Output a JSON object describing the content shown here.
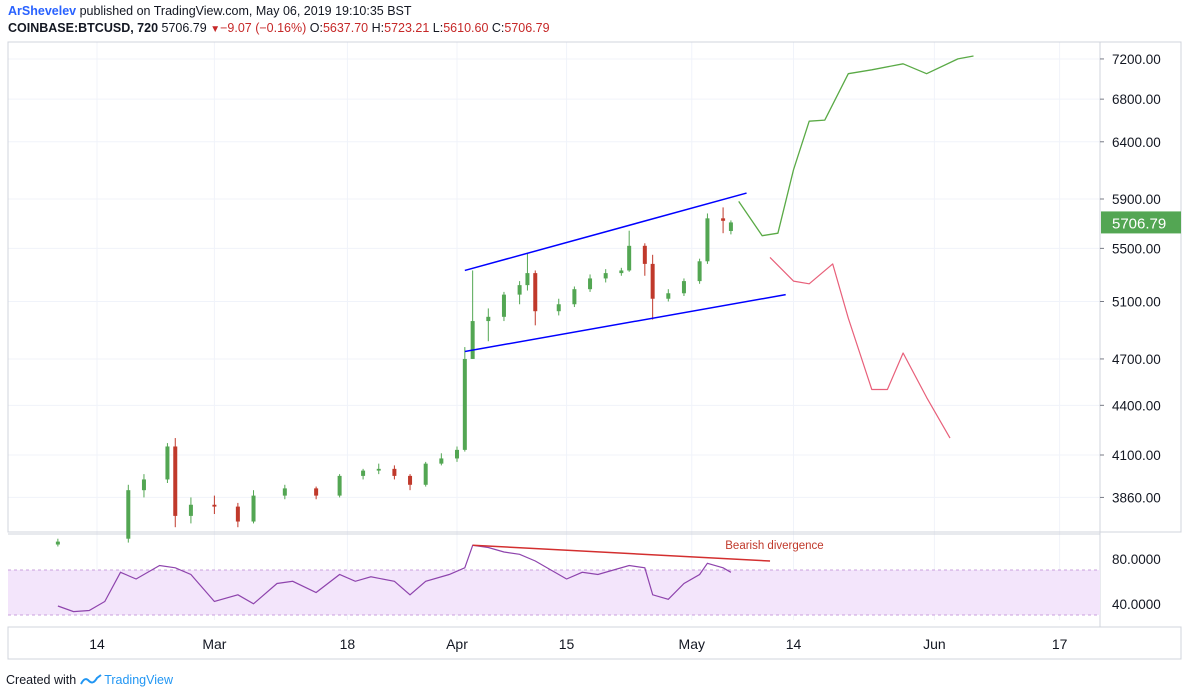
{
  "header": {
    "author": "ArShevelev",
    "published": "published on TradingView.com, May 06, 2019 19:10:35 BST",
    "symbol": "COINBASE:BTCUSD, 720",
    "last": "5706.79",
    "change": "−9.07 (−0.16%)",
    "o_label": "O:",
    "o_value": "5637.70",
    "h_label": "H:",
    "h_value": "5723.21",
    "l_label": "L:",
    "l_value": "5610.60",
    "c_label": "C:",
    "c_value": "5706.79"
  },
  "footer": {
    "created_with": "Created with",
    "brand": "TradingView"
  },
  "colors": {
    "up": "#53a653",
    "down": "#c0392b",
    "channel": "#0000ff",
    "bull": "#5aaa46",
    "bear": "#e8607a",
    "rsi": "#8e44ad",
    "rsi_band": "#f3e5fb",
    "divergence": "#d32f2f"
  },
  "chart_data": [
    {
      "type": "candlestick",
      "title": "",
      "price_scale": {
        "ticks": [
          3860,
          4100,
          4400,
          4700,
          5100,
          5500,
          5900,
          6400,
          6800,
          7200
        ],
        "tick_labels": [
          "3860.00",
          "4100.00",
          "4400.00",
          "4700.00",
          "5100.00",
          "5500.00",
          "5900.00",
          "6400.00",
          "6800.00",
          "7200.00"
        ],
        "scale": "log"
      },
      "last_price_label": "5706.79",
      "time_axis": {
        "ticks": [
          "14",
          "Mar",
          "18",
          "Apr",
          "15",
          "May",
          "14",
          "Jun",
          "17"
        ],
        "tick_dates": [
          "2019-02-14",
          "2019-03-01",
          "2019-03-18",
          "2019-04-01",
          "2019-04-15",
          "2019-05-01",
          "2019-05-14",
          "2019-06-01",
          "2019-06-17"
        ]
      },
      "ohlc_12h": [
        {
          "date": "2019-02-09",
          "segment": "pre-rally",
          "values": [
            3610,
            3640,
            3600,
            3625
          ]
        },
        {
          "date": "2019-02-18",
          "values": [
            3640,
            3930,
            3620,
            3900
          ]
        },
        {
          "date": "2019-02-20",
          "values": [
            3900,
            3990,
            3860,
            3960
          ]
        },
        {
          "date": "2019-02-23",
          "values": [
            3960,
            4170,
            3940,
            4150
          ]
        },
        {
          "date": "2019-02-24",
          "values": [
            4150,
            4200,
            3700,
            3760
          ]
        },
        {
          "date": "2019-02-26",
          "values": [
            3760,
            3860,
            3720,
            3820
          ]
        },
        {
          "date": "2019-03-01",
          "values": [
            3820,
            3870,
            3770,
            3810
          ]
        },
        {
          "date": "2019-03-04",
          "values": [
            3810,
            3830,
            3700,
            3730
          ]
        },
        {
          "date": "2019-03-06",
          "values": [
            3730,
            3900,
            3720,
            3870
          ]
        },
        {
          "date": "2019-03-10",
          "values": [
            3870,
            3930,
            3850,
            3910
          ]
        },
        {
          "date": "2019-03-14",
          "values": [
            3910,
            3920,
            3850,
            3870
          ]
        },
        {
          "date": "2019-03-17",
          "values": [
            3870,
            3990,
            3860,
            3980
          ]
        },
        {
          "date": "2019-03-20",
          "values": [
            3980,
            4020,
            3960,
            4010
          ]
        },
        {
          "date": "2019-03-22",
          "values": [
            4010,
            4050,
            3990,
            4020
          ]
        },
        {
          "date": "2019-03-24",
          "values": [
            4020,
            4040,
            3960,
            3980
          ]
        },
        {
          "date": "2019-03-26",
          "values": [
            3980,
            3990,
            3900,
            3930
          ]
        },
        {
          "date": "2019-03-28",
          "values": [
            3930,
            4060,
            3920,
            4050
          ]
        },
        {
          "date": "2019-03-30",
          "values": [
            4050,
            4110,
            4040,
            4080
          ]
        },
        {
          "date": "2019-04-01",
          "values": [
            4080,
            4150,
            4060,
            4130
          ]
        },
        {
          "date": "2019-04-02",
          "values": [
            4130,
            4780,
            4120,
            4700
          ]
        },
        {
          "date": "2019-04-03",
          "values": [
            4700,
            5330,
            4700,
            4960
          ]
        },
        {
          "date": "2019-04-05",
          "values": [
            4960,
            5050,
            4820,
            4990
          ]
        },
        {
          "date": "2019-04-07",
          "values": [
            4990,
            5170,
            4960,
            5150
          ]
        },
        {
          "date": "2019-04-09",
          "values": [
            5150,
            5250,
            5080,
            5220
          ]
        },
        {
          "date": "2019-04-10",
          "values": [
            5220,
            5460,
            5180,
            5310
          ]
        },
        {
          "date": "2019-04-11",
          "values": [
            5310,
            5330,
            4930,
            5030
          ]
        },
        {
          "date": "2019-04-14",
          "values": [
            5030,
            5120,
            5000,
            5080
          ]
        },
        {
          "date": "2019-04-16",
          "values": [
            5080,
            5210,
            5060,
            5190
          ]
        },
        {
          "date": "2019-04-18",
          "values": [
            5190,
            5300,
            5170,
            5270
          ]
        },
        {
          "date": "2019-04-20",
          "values": [
            5270,
            5340,
            5240,
            5310
          ]
        },
        {
          "date": "2019-04-22",
          "values": [
            5310,
            5350,
            5290,
            5330
          ]
        },
        {
          "date": "2019-04-23",
          "values": [
            5330,
            5640,
            5320,
            5520
          ]
        },
        {
          "date": "2019-04-25",
          "values": [
            5520,
            5540,
            5290,
            5380
          ]
        },
        {
          "date": "2019-04-26",
          "values": [
            5380,
            5450,
            4970,
            5120
          ]
        },
        {
          "date": "2019-04-28",
          "values": [
            5120,
            5190,
            5100,
            5160
          ]
        },
        {
          "date": "2019-04-30",
          "values": [
            5160,
            5270,
            5140,
            5250
          ]
        },
        {
          "date": "2019-05-02",
          "values": [
            5250,
            5420,
            5230,
            5400
          ]
        },
        {
          "date": "2019-05-03",
          "values": [
            5400,
            5780,
            5380,
            5740
          ]
        },
        {
          "date": "2019-05-05",
          "values": [
            5740,
            5830,
            5620,
            5720
          ]
        },
        {
          "date": "2019-05-06",
          "values": [
            5637.7,
            5723.21,
            5610.6,
            5706.79
          ]
        }
      ],
      "ohlc_fields": [
        "open",
        "high",
        "low",
        "close"
      ],
      "channel": {
        "upper": [
          [
            "2019-04-02",
            5330
          ],
          [
            "2019-05-08",
            5950
          ]
        ],
        "lower": [
          [
            "2019-04-02",
            4750
          ],
          [
            "2019-05-13",
            5150
          ]
        ]
      },
      "bullish_projection": [
        [
          "2019-05-07",
          5880
        ],
        [
          "2019-05-10",
          5600
        ],
        [
          "2019-05-12",
          5620
        ],
        [
          "2019-05-14",
          6150
        ],
        [
          "2019-05-16",
          6590
        ],
        [
          "2019-05-18",
          6600
        ],
        [
          "2019-05-21",
          7050
        ],
        [
          "2019-05-24",
          7090
        ],
        [
          "2019-05-28",
          7150
        ],
        [
          "2019-05-31",
          7050
        ],
        [
          "2019-06-04",
          7200
        ],
        [
          "2019-06-06",
          7230
        ]
      ],
      "bearish_projection": [
        [
          "2019-05-11",
          5430
        ],
        [
          "2019-05-14",
          5250
        ],
        [
          "2019-05-16",
          5230
        ],
        [
          "2019-05-19",
          5380
        ],
        [
          "2019-05-21",
          4980
        ],
        [
          "2019-05-24",
          4500
        ],
        [
          "2019-05-26",
          4500
        ],
        [
          "2019-05-28",
          4740
        ],
        [
          "2019-05-31",
          4450
        ],
        [
          "2019-06-03",
          4200
        ]
      ]
    },
    {
      "type": "line",
      "indicator": "RSI",
      "y_ticks": [
        40,
        80
      ],
      "y_tick_labels": [
        "40.0000",
        "80.0000"
      ],
      "band": [
        30,
        70
      ],
      "values": [
        [
          "2019-02-09",
          38
        ],
        [
          "2019-02-11",
          33
        ],
        [
          "2019-02-13",
          34
        ],
        [
          "2019-02-15",
          42
        ],
        [
          "2019-02-17",
          68
        ],
        [
          "2019-02-19",
          62
        ],
        [
          "2019-02-22",
          74
        ],
        [
          "2019-02-24",
          72
        ],
        [
          "2019-02-26",
          66
        ],
        [
          "2019-03-01",
          42
        ],
        [
          "2019-03-04",
          48
        ],
        [
          "2019-03-06",
          40
        ],
        [
          "2019-03-09",
          58
        ],
        [
          "2019-03-11",
          60
        ],
        [
          "2019-03-14",
          50
        ],
        [
          "2019-03-17",
          66
        ],
        [
          "2019-03-19",
          60
        ],
        [
          "2019-03-21",
          64
        ],
        [
          "2019-03-24",
          60
        ],
        [
          "2019-03-26",
          48
        ],
        [
          "2019-03-28",
          60
        ],
        [
          "2019-03-31",
          66
        ],
        [
          "2019-04-02",
          72
        ],
        [
          "2019-04-03",
          92
        ],
        [
          "2019-04-05",
          90
        ],
        [
          "2019-04-07",
          86
        ],
        [
          "2019-04-09",
          84
        ],
        [
          "2019-04-11",
          78
        ],
        [
          "2019-04-13",
          70
        ],
        [
          "2019-04-15",
          62
        ],
        [
          "2019-04-17",
          68
        ],
        [
          "2019-04-19",
          66
        ],
        [
          "2019-04-21",
          70
        ],
        [
          "2019-04-23",
          74
        ],
        [
          "2019-04-25",
          72
        ],
        [
          "2019-04-26",
          48
        ],
        [
          "2019-04-28",
          44
        ],
        [
          "2019-04-30",
          58
        ],
        [
          "2019-05-02",
          66
        ],
        [
          "2019-05-03",
          76
        ],
        [
          "2019-05-05",
          72
        ],
        [
          "2019-05-06",
          68
        ]
      ],
      "annotation": {
        "text": "Bearish divergence",
        "line": [
          [
            "2019-04-03",
            92
          ],
          [
            "2019-05-11",
            78
          ]
        ]
      }
    }
  ]
}
